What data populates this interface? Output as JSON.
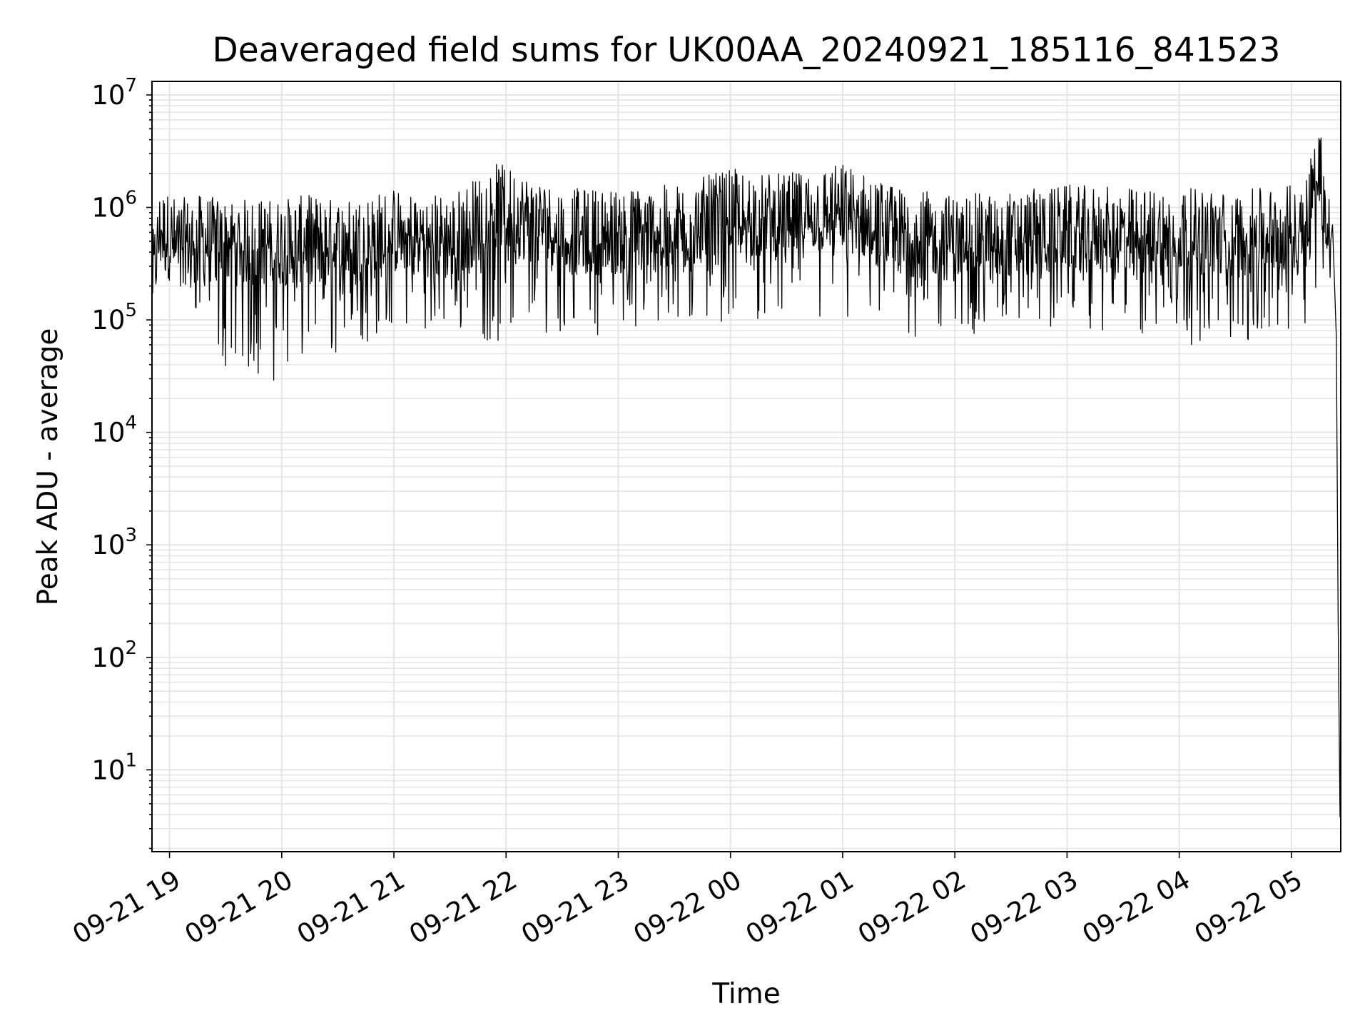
{
  "chart_data": {
    "type": "line",
    "title": "Deaveraged field sums for UK00AA_20240921_185116_841523",
    "xlabel": "Time",
    "ylabel": "Peak ADU - average",
    "yscale": "log",
    "ylim": [
      1.9,
      13000000
    ],
    "xlim": [
      "2024-09-21 18:51",
      "2024-09-22 05:26"
    ],
    "grid": true,
    "line_color": "#000000",
    "grid_color": "#e5e5e5",
    "x_tick_labels": [
      "09-21 19",
      "09-21 20",
      "09-21 21",
      "09-21 22",
      "09-21 23",
      "09-22 00",
      "09-22 01",
      "09-22 02",
      "09-22 03",
      "09-22 04",
      "09-22 05"
    ],
    "x_tick_times": [
      "2024-09-21 19:00",
      "2024-09-21 20:00",
      "2024-09-21 21:00",
      "2024-09-21 22:00",
      "2024-09-21 23:00",
      "2024-09-22 00:00",
      "2024-09-22 01:00",
      "2024-09-22 02:00",
      "2024-09-22 03:00",
      "2024-09-22 04:00",
      "2024-09-22 05:00"
    ],
    "y_ticks": [
      {
        "base": "10",
        "exp": "1",
        "value": 10
      },
      {
        "base": "10",
        "exp": "2",
        "value": 100
      },
      {
        "base": "10",
        "exp": "3",
        "value": 1000
      },
      {
        "base": "10",
        "exp": "4",
        "value": 10000
      },
      {
        "base": "10",
        "exp": "5",
        "value": 100000
      },
      {
        "base": "10",
        "exp": "6",
        "value": 1000000
      },
      {
        "base": "10",
        "exp": "7",
        "value": 10000000
      }
    ],
    "series": [
      {
        "values_summary": "dense noisy time series, 'x' = time, 'y' = Peak ADU - average; points below are the approximate envelope read from the figure",
        "x": [
          "2024-09-21 18:51",
          "2024-09-21 18:55",
          "2024-09-21 18:58",
          "2024-09-21 19:05",
          "2024-09-21 19:15",
          "2024-09-21 19:30",
          "2024-09-21 19:45",
          "2024-09-21 20:00",
          "2024-09-21 20:15",
          "2024-09-21 20:30",
          "2024-09-21 20:45",
          "2024-09-21 21:00",
          "2024-09-21 21:30",
          "2024-09-21 21:55",
          "2024-09-21 22:30",
          "2024-09-21 23:00",
          "2024-09-21 23:30",
          "2024-09-22 00:00",
          "2024-09-22 00:30",
          "2024-09-22 01:00",
          "2024-09-22 01:30",
          "2024-09-22 02:00",
          "2024-09-22 02:30",
          "2024-09-22 03:00",
          "2024-09-22 03:30",
          "2024-09-22 04:00",
          "2024-09-22 04:30",
          "2024-09-22 05:00",
          "2024-09-22 05:10",
          "2024-09-22 05:15",
          "2024-09-22 05:20",
          "2024-09-22 05:24",
          "2024-09-22 05:26"
        ],
        "y_high": [
          600000,
          1500000,
          1400000,
          1200000,
          1300000,
          1200000,
          1200000,
          1200000,
          1300000,
          1200000,
          1300000,
          1500000,
          1300000,
          2500000,
          1500000,
          1500000,
          1600000,
          2200000,
          2000000,
          2500000,
          1500000,
          1300000,
          1400000,
          1600000,
          1500000,
          1500000,
          1400000,
          1600000,
          2800000,
          6500000,
          1500000,
          1000000,
          5
        ],
        "y_low": [
          350000,
          600000,
          500000,
          150000,
          100000,
          35000,
          30000,
          28000,
          35000,
          50000,
          60000,
          90000,
          80000,
          60000,
          80000,
          70000,
          80000,
          100000,
          100000,
          80000,
          60000,
          70000,
          80000,
          80000,
          70000,
          60000,
          60000,
          70000,
          100000,
          300000,
          200000,
          60000,
          3.8
        ]
      }
    ]
  }
}
